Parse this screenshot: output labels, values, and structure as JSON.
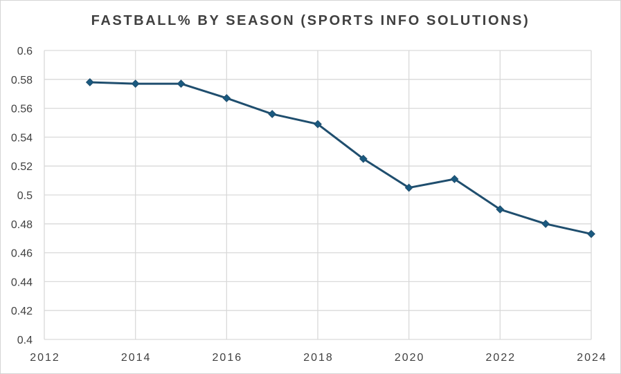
{
  "chart_data": {
    "type": "scatter",
    "title": "FASTBALL% BY SEASON (SPORTS INFO SOLUTIONS)",
    "xlabel": "",
    "ylabel": "",
    "xlim": [
      2012,
      2024
    ],
    "ylim": [
      0.4,
      0.6
    ],
    "x_ticks": [
      "2012",
      "2014",
      "2016",
      "2018",
      "2020",
      "2022",
      "2024"
    ],
    "y_ticks": [
      "0.4",
      "0.42",
      "0.44",
      "0.46",
      "0.48",
      "0.5",
      "0.52",
      "0.54",
      "0.56",
      "0.58",
      "0.6"
    ],
    "grid": true,
    "legend": "none",
    "series": [
      {
        "x": [
          2013,
          2014,
          2015,
          2016,
          2017,
          2018,
          2019,
          2020,
          2021,
          2022,
          2023,
          2024
        ],
        "y": [
          0.578,
          0.577,
          0.577,
          0.567,
          0.556,
          0.549,
          0.525,
          0.505,
          0.511,
          0.49,
          0.48,
          0.473
        ],
        "color": "#1f4e6e",
        "marker_color": "#1a5a80",
        "marker": "diamond"
      }
    ],
    "grid_color": "#d9d9d9"
  }
}
